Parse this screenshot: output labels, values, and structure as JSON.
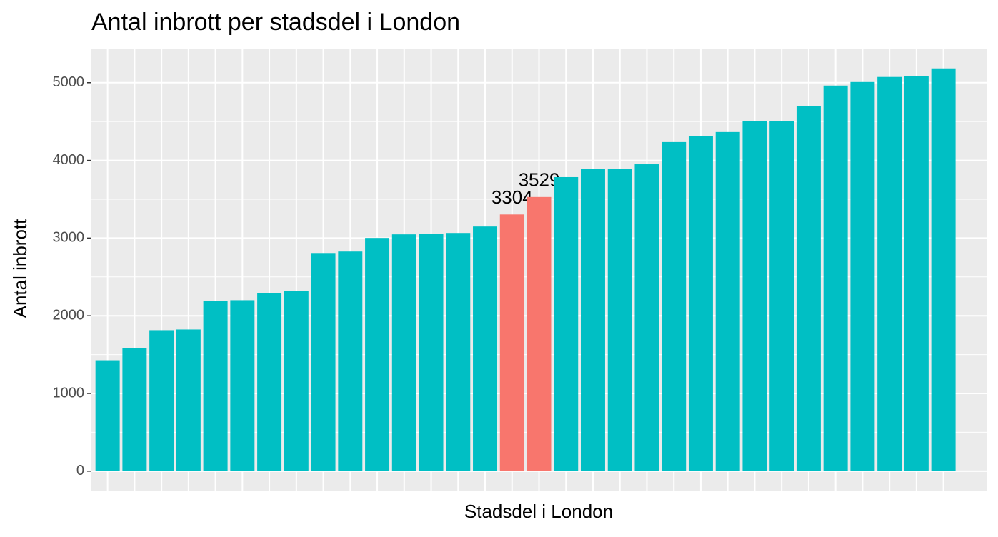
{
  "chart_data": {
    "type": "bar",
    "title": "Antal inbrott per stadsdel i London",
    "x_label": "Stadsdel i London",
    "y_label": "Antal inbrott",
    "categories": [
      null,
      null,
      null,
      null,
      null,
      null,
      null,
      null,
      null,
      null,
      null,
      null,
      null,
      null,
      null,
      null,
      null,
      null,
      null,
      null,
      null,
      null,
      null,
      null,
      null,
      null,
      null,
      null,
      null,
      null,
      null,
      null
    ],
    "values": [
      1427,
      1584,
      1814,
      1823,
      2191,
      2200,
      2293,
      2320,
      2808,
      2827,
      3002,
      3048,
      3057,
      3066,
      3149,
      3304,
      3529,
      3785,
      3895,
      3895,
      3950,
      4236,
      4309,
      4365,
      4503,
      4503,
      4696,
      4963,
      5009,
      5074,
      5083,
      5184
    ],
    "value_labels": [
      null,
      null,
      null,
      null,
      null,
      null,
      null,
      null,
      null,
      null,
      null,
      null,
      null,
      null,
      null,
      "3304",
      "3529",
      null,
      null,
      null,
      null,
      null,
      null,
      null,
      null,
      null,
      null,
      null,
      null,
      null,
      null,
      null
    ],
    "colors": [
      "#00BFC4",
      "#00BFC4",
      "#00BFC4",
      "#00BFC4",
      "#00BFC4",
      "#00BFC4",
      "#00BFC4",
      "#00BFC4",
      "#00BFC4",
      "#00BFC4",
      "#00BFC4",
      "#00BFC4",
      "#00BFC4",
      "#00BFC4",
      "#00BFC4",
      "#F8766D",
      "#F8766D",
      "#00BFC4",
      "#00BFC4",
      "#00BFC4",
      "#00BFC4",
      "#00BFC4",
      "#00BFC4",
      "#00BFC4",
      "#00BFC4",
      "#00BFC4",
      "#00BFC4",
      "#00BFC4",
      "#00BFC4",
      "#00BFC4",
      "#00BFC4",
      "#00BFC4"
    ],
    "ylim": [
      -259,
      5439
    ],
    "yticks": [
      0,
      1000,
      2000,
      3000,
      4000,
      5000
    ],
    "grid": true
  }
}
